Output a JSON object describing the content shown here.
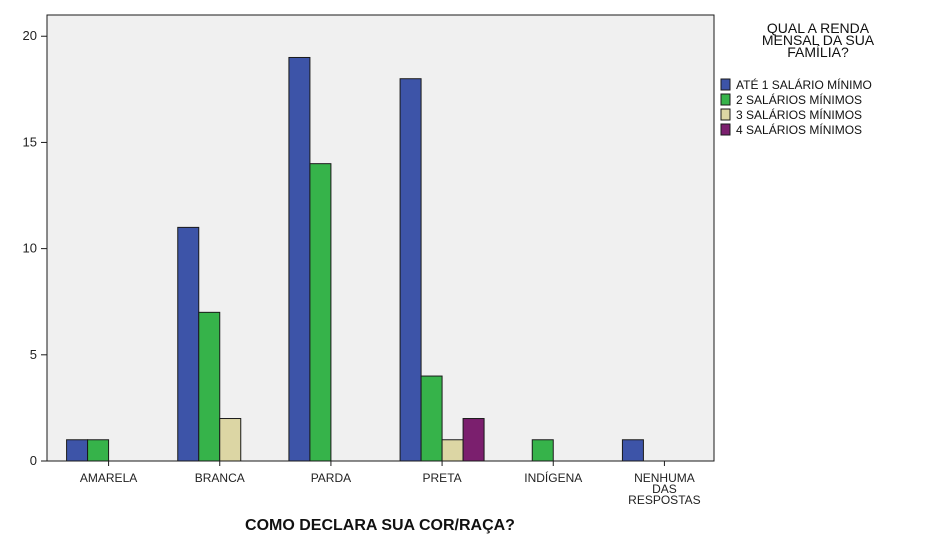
{
  "chart_data": {
    "type": "bar",
    "title": "",
    "xlabel": "COMO DECLARA SUA COR/RAÇA?",
    "ylabel": "",
    "ylim": [
      0,
      21
    ],
    "yticks": [
      0,
      5,
      10,
      15,
      20
    ],
    "grid": false,
    "legend_position": "right",
    "legend_title": [
      "QUAL A RENDA",
      "MENSAL DA SUA",
      "FAMÍLIA?"
    ],
    "categories": [
      [
        "AMARELA"
      ],
      [
        "BRANCA"
      ],
      [
        "PARDA"
      ],
      [
        "PRETA"
      ],
      [
        "INDÍGENA"
      ],
      [
        "NENHUMA",
        "DAS",
        "RESPOSTAS"
      ]
    ],
    "series": [
      {
        "name": "ATÉ 1 SALÁRIO MÍNIMO",
        "color": "#3d54a8",
        "values": [
          1,
          11,
          19,
          18,
          0,
          1
        ]
      },
      {
        "name": "2 SALÁRIOS MÍNIMOS",
        "color": "#36b34a",
        "values": [
          1,
          7,
          14,
          4,
          1,
          0
        ]
      },
      {
        "name": "3 SALÁRIOS MÍNIMOS",
        "color": "#dcd6a4",
        "values": [
          0,
          2,
          0,
          1,
          0,
          0
        ]
      },
      {
        "name": "4 SALÁRIOS MÍNIMOS",
        "color": "#7b1f6e",
        "values": [
          0,
          0,
          0,
          2,
          0,
          0
        ]
      }
    ],
    "colors": {
      "plot_background": "#f0f0f0",
      "page_background": "#ffffff",
      "bar_outline": "#1a1a1a"
    }
  }
}
